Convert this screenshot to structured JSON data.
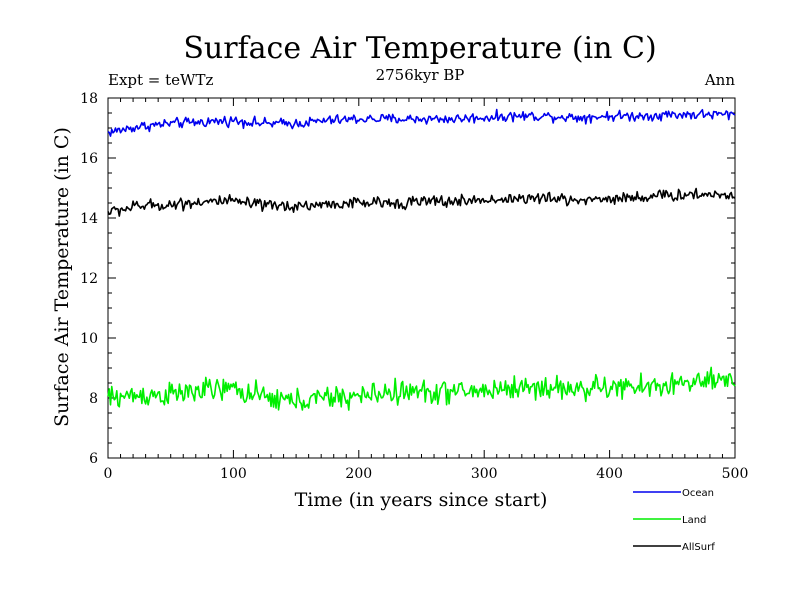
{
  "chart_data": {
    "type": "line",
    "title": "Surface Air Temperature (in C)",
    "subtitle": "2756kyr BP",
    "left_label": "Expt = teWTz",
    "right_label": "Ann",
    "xlabel": "Time (in years since start)",
    "ylabel": "Surface Air Temperature (in C)",
    "xlim": [
      0,
      500
    ],
    "ylim": [
      6,
      18
    ],
    "x_ticks": [
      0,
      100,
      200,
      300,
      400,
      500
    ],
    "y_ticks": [
      6,
      8,
      10,
      12,
      14,
      16,
      18
    ],
    "legend_position": "bottom-right",
    "series": [
      {
        "name": "Ocean",
        "color": "#0000ee",
        "x": [
          0,
          25,
          50,
          75,
          100,
          125,
          150,
          175,
          200,
          225,
          250,
          275,
          300,
          325,
          350,
          375,
          400,
          425,
          450,
          475,
          500
        ],
        "values": [
          16.85,
          17.05,
          17.15,
          17.2,
          17.25,
          17.15,
          17.15,
          17.25,
          17.3,
          17.3,
          17.3,
          17.3,
          17.35,
          17.4,
          17.4,
          17.35,
          17.4,
          17.4,
          17.45,
          17.45,
          17.45
        ]
      },
      {
        "name": "Land",
        "color": "#00ee00",
        "x": [
          0,
          25,
          50,
          75,
          100,
          125,
          150,
          175,
          200,
          225,
          250,
          275,
          300,
          325,
          350,
          375,
          400,
          425,
          450,
          475,
          500
        ],
        "values": [
          8.0,
          8.1,
          8.1,
          8.25,
          8.3,
          8.0,
          7.9,
          8.0,
          8.05,
          8.2,
          8.2,
          8.2,
          8.25,
          8.35,
          8.35,
          8.3,
          8.35,
          8.35,
          8.45,
          8.55,
          8.5
        ]
      },
      {
        "name": "AllSurf",
        "color": "#000000",
        "x": [
          0,
          25,
          50,
          75,
          100,
          125,
          150,
          175,
          200,
          225,
          250,
          275,
          300,
          325,
          350,
          375,
          400,
          425,
          450,
          475,
          500
        ],
        "values": [
          14.2,
          14.4,
          14.45,
          14.55,
          14.55,
          14.4,
          14.4,
          14.45,
          14.5,
          14.5,
          14.55,
          14.55,
          14.6,
          14.65,
          14.65,
          14.6,
          14.65,
          14.7,
          14.75,
          14.8,
          14.75
        ]
      }
    ]
  }
}
